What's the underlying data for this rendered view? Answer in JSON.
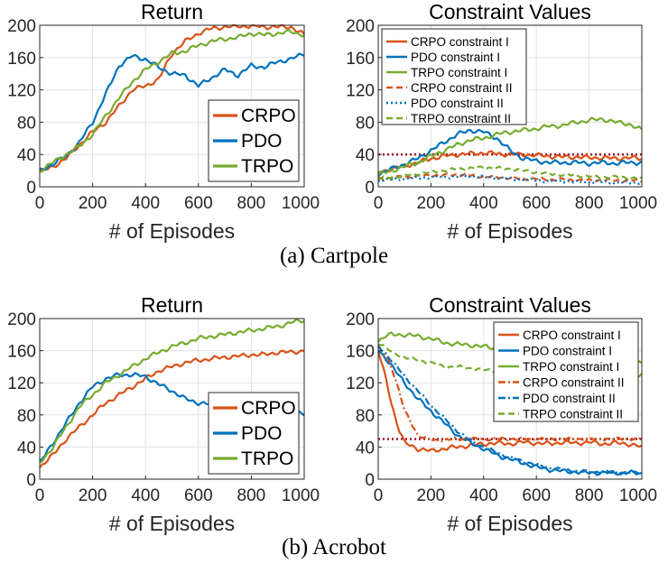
{
  "figure": {
    "captions": [
      "(a) Cartpole",
      "(b) Acrobot"
    ],
    "colors": {
      "CRPO": "#d95319",
      "PDO": "#0072bd",
      "TRPO": "#77ac30",
      "threshold": "#a2142f",
      "grid": "#e3e3e3",
      "axis": "#262626"
    }
  },
  "chart_data": [
    {
      "id": "cartpole-return",
      "type": "line",
      "title": "Return",
      "xlabel": "# of Episodes",
      "ylabel": "",
      "xlim": [
        0,
        1000
      ],
      "ylim": [
        0,
        200
      ],
      "xticks": [
        0,
        200,
        400,
        600,
        800,
        1000
      ],
      "yticks": [
        0,
        40,
        80,
        120,
        160,
        200
      ],
      "grid": true,
      "legend": "bottom-right",
      "x": [
        0,
        50,
        100,
        150,
        200,
        250,
        300,
        350,
        400,
        450,
        500,
        550,
        600,
        650,
        700,
        750,
        800,
        850,
        900,
        950,
        1000
      ],
      "series": [
        {
          "name": "CRPO",
          "color": "#d95319",
          "dash": "solid",
          "values": [
            18,
            25,
            35,
            52,
            68,
            80,
            100,
            120,
            125,
            133,
            165,
            180,
            190,
            196,
            198,
            199,
            199,
            198,
            198,
            198,
            188
          ]
        },
        {
          "name": "PDO",
          "color": "#0072bd",
          "dash": "solid",
          "values": [
            20,
            28,
            38,
            55,
            80,
            115,
            150,
            162,
            158,
            148,
            140,
            138,
            125,
            135,
            145,
            138,
            150,
            148,
            155,
            158,
            165
          ]
        },
        {
          "name": "TRPO",
          "color": "#77ac30",
          "dash": "solid",
          "values": [
            20,
            30,
            40,
            50,
            65,
            88,
            110,
            130,
            145,
            155,
            165,
            168,
            175,
            180,
            183,
            185,
            190,
            188,
            190,
            192,
            188
          ]
        }
      ]
    },
    {
      "id": "cartpole-constraints",
      "type": "line",
      "title": "Constraint Values",
      "xlabel": "# of Episodes",
      "ylabel": "",
      "xlim": [
        0,
        1000
      ],
      "ylim": [
        0,
        200
      ],
      "xticks": [
        0,
        200,
        400,
        600,
        800,
        1000
      ],
      "yticks": [
        0,
        40,
        80,
        120,
        160,
        200
      ],
      "grid": true,
      "legend": "top-left",
      "threshold": 40,
      "x": [
        0,
        50,
        100,
        150,
        200,
        250,
        300,
        350,
        400,
        450,
        500,
        550,
        600,
        650,
        700,
        750,
        800,
        850,
        900,
        950,
        1000
      ],
      "series": [
        {
          "name": "CRPO constraint I",
          "color": "#d95319",
          "dash": "solid",
          "values": [
            18,
            22,
            26,
            30,
            35,
            38,
            40,
            41,
            42,
            41,
            40,
            40,
            39,
            38,
            37,
            37,
            36,
            36,
            35,
            36,
            35
          ]
        },
        {
          "name": "PDO constraint I",
          "color": "#0072bd",
          "dash": "solid",
          "values": [
            16,
            22,
            28,
            35,
            45,
            55,
            65,
            70,
            68,
            60,
            45,
            35,
            32,
            30,
            30,
            30,
            29,
            30,
            29,
            30,
            30
          ]
        },
        {
          "name": "TRPO constraint I",
          "color": "#77ac30",
          "dash": "solid",
          "values": [
            15,
            20,
            25,
            30,
            38,
            45,
            52,
            58,
            60,
            65,
            68,
            70,
            72,
            75,
            76,
            80,
            82,
            84,
            80,
            78,
            70
          ]
        },
        {
          "name": "CRPO constraint II",
          "color": "#d95319",
          "dash": "dash",
          "values": [
            10,
            11,
            12,
            13,
            14,
            14,
            15,
            14,
            13,
            12,
            11,
            10,
            10,
            9,
            9,
            8,
            8,
            8,
            8,
            8,
            8
          ]
        },
        {
          "name": "PDO constraint II",
          "color": "#0072bd",
          "dash": "dot",
          "values": [
            8,
            9,
            10,
            11,
            12,
            12,
            13,
            13,
            12,
            11,
            10,
            9,
            8,
            7,
            7,
            6,
            6,
            6,
            5,
            5,
            5
          ]
        },
        {
          "name": "TRPO constraint II",
          "color": "#77ac30",
          "dash": "dash",
          "values": [
            10,
            12,
            14,
            16,
            18,
            20,
            22,
            23,
            24,
            23,
            22,
            20,
            18,
            16,
            15,
            14,
            13,
            12,
            12,
            11,
            10
          ]
        }
      ]
    },
    {
      "id": "acrobot-return",
      "type": "line",
      "title": "Return",
      "xlabel": "# of Episodes",
      "ylabel": "",
      "xlim": [
        0,
        1000
      ],
      "ylim": [
        0,
        200
      ],
      "xticks": [
        0,
        200,
        400,
        600,
        800,
        1000
      ],
      "yticks": [
        0,
        40,
        80,
        120,
        160,
        200
      ],
      "grid": true,
      "legend": "bottom-right",
      "x": [
        0,
        50,
        100,
        150,
        200,
        250,
        300,
        350,
        400,
        450,
        500,
        550,
        600,
        650,
        700,
        750,
        800,
        850,
        900,
        950,
        1000
      ],
      "series": [
        {
          "name": "CRPO",
          "color": "#d95319",
          "dash": "solid",
          "values": [
            15,
            30,
            50,
            65,
            80,
            95,
            105,
            115,
            125,
            135,
            140,
            145,
            148,
            150,
            152,
            153,
            155,
            155,
            158,
            158,
            160
          ]
        },
        {
          "name": "PDO",
          "color": "#0072bd",
          "dash": "solid",
          "values": [
            20,
            45,
            70,
            95,
            115,
            125,
            130,
            130,
            128,
            118,
            110,
            100,
            95,
            93,
            92,
            90,
            88,
            87,
            86,
            85,
            80
          ]
        },
        {
          "name": "TRPO",
          "color": "#77ac30",
          "dash": "solid",
          "values": [
            20,
            40,
            65,
            90,
            105,
            120,
            130,
            140,
            150,
            158,
            165,
            170,
            175,
            178,
            180,
            183,
            185,
            188,
            190,
            195,
            198
          ]
        }
      ]
    },
    {
      "id": "acrobot-constraints",
      "type": "line",
      "title": "Constraint Values",
      "xlabel": "# of Episodes",
      "ylabel": "",
      "xlim": [
        0,
        1000
      ],
      "ylim": [
        0,
        200
      ],
      "xticks": [
        0,
        200,
        400,
        600,
        800,
        1000
      ],
      "yticks": [
        0,
        40,
        80,
        120,
        160,
        200
      ],
      "grid": true,
      "legend": "top-right",
      "threshold": 50,
      "x": [
        0,
        25,
        50,
        75,
        100,
        150,
        200,
        250,
        300,
        350,
        400,
        450,
        500,
        550,
        600,
        650,
        700,
        750,
        800,
        850,
        900,
        950,
        1000
      ],
      "series": [
        {
          "name": "CRPO constraint I",
          "color": "#d95319",
          "dash": "solid",
          "values": [
            160,
            130,
            95,
            65,
            45,
            38,
            35,
            38,
            40,
            42,
            44,
            45,
            44,
            46,
            45,
            44,
            46,
            45,
            46,
            44,
            45,
            44,
            40
          ]
        },
        {
          "name": "PDO constraint I",
          "color": "#0072bd",
          "dash": "solid",
          "values": [
            160,
            152,
            142,
            130,
            120,
            100,
            85,
            70,
            55,
            45,
            38,
            30,
            25,
            20,
            15,
            12,
            10,
            9,
            8,
            8,
            8,
            8,
            7
          ]
        },
        {
          "name": "TRPO constraint I",
          "color": "#77ac30",
          "dash": "solid",
          "values": [
            172,
            178,
            180,
            180,
            180,
            178,
            175,
            170,
            168,
            167,
            165,
            163,
            160,
            158,
            158,
            156,
            155,
            155,
            154,
            152,
            150,
            148,
            145
          ]
        },
        {
          "name": "CRPO constraint II",
          "color": "#d95319",
          "dash": "dashdot",
          "values": [
            165,
            155,
            140,
            115,
            85,
            55,
            48,
            49,
            50,
            50,
            50,
            50,
            50,
            50,
            50,
            50,
            50,
            50,
            50,
            50,
            50,
            50,
            50
          ]
        },
        {
          "name": "PDO constraint II",
          "color": "#0072bd",
          "dash": "dashdot",
          "values": [
            165,
            158,
            148,
            138,
            128,
            110,
            92,
            76,
            60,
            48,
            40,
            33,
            27,
            22,
            18,
            14,
            12,
            10,
            9,
            9,
            8,
            8,
            8
          ]
        },
        {
          "name": "TRPO constraint II",
          "color": "#77ac30",
          "dash": "dash",
          "values": [
            170,
            165,
            158,
            155,
            152,
            148,
            145,
            140,
            140,
            138,
            136,
            135,
            133,
            132,
            130,
            130,
            128,
            128,
            126,
            125,
            125,
            125,
            130
          ]
        }
      ]
    }
  ]
}
